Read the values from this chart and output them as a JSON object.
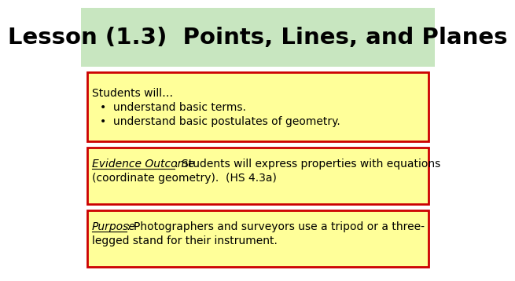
{
  "title": "Lesson (1.3)  Points, Lines, and Planes",
  "title_fontsize": 21,
  "title_color": "#000000",
  "background_color": "#ffffff",
  "header_color": "#c8e6c0",
  "box_bg_color": "#ffff99",
  "box_border_color": "#cc0000",
  "box1_line1": "Students will…",
  "box1_line2": "•  understand basic terms.",
  "box1_line3": "•  understand basic postulates of geometry.",
  "box2_label": "Evidence Outcome",
  "box2_rest_line1": ": Students will express properties with equations",
  "box2_line2": "(coordinate geometry).  (HS 4.3a)",
  "box3_label": "Purpose",
  "box3_rest_line1": ": Photographers and surveyors use a tripod or a three-",
  "box3_line2": "legged stand for their instrument.",
  "text_color": "#000000",
  "text_fontsize": 10,
  "label_fontsize": 10
}
